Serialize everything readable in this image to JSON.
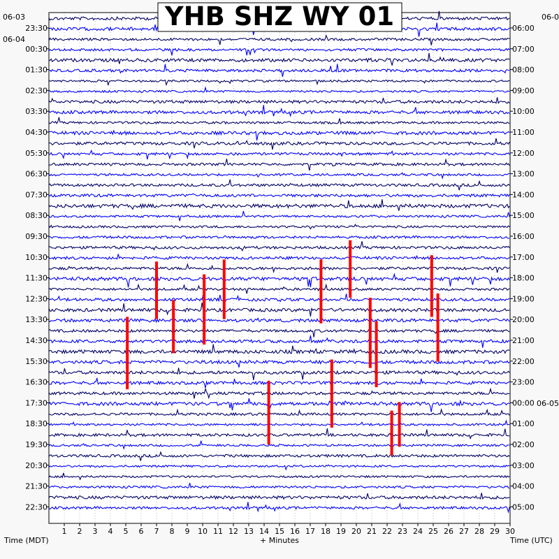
{
  "chart_data": {
    "type": "helicorder",
    "title": "YHB SHZ WY 01",
    "xlabel": "+ Minutes",
    "left_axis_title": "Time (MDT)",
    "right_axis_title": "Time (UTC)",
    "xlim": [
      0,
      30
    ],
    "x_ticks": [
      "1",
      "2",
      "3",
      "4",
      "5",
      "6",
      "7",
      "8",
      "9",
      "10",
      "11",
      "12",
      "13",
      "14",
      "15",
      "16",
      "17",
      "18",
      "19",
      "20",
      "21",
      "22",
      "23",
      "24",
      "25",
      "26",
      "27",
      "28",
      "29",
      "30"
    ],
    "left_date_labels": [
      "06-03",
      "06-04"
    ],
    "right_date_labels": [
      "06-0",
      "06-05"
    ],
    "left_times": [
      "23:30",
      "00:30",
      "01:30",
      "02:30",
      "03:30",
      "04:30",
      "05:30",
      "06:30",
      "07:30",
      "08:30",
      "09:30",
      "10:30",
      "11:30",
      "12:30",
      "13:30",
      "14:30",
      "15:30",
      "16:30",
      "17:30",
      "18:30",
      "19:30",
      "20:30",
      "21:30",
      "22:30"
    ],
    "right_times": [
      "06:00",
      "07:00",
      "08:00",
      "09:00",
      "10:00",
      "11:00",
      "12:00",
      "13:00",
      "14:00",
      "15:00",
      "16:00",
      "17:00",
      "18:00",
      "19:00",
      "20:00",
      "21:00",
      "22:00",
      "23:00",
      "00:00",
      "01:00",
      "02:00",
      "03:00",
      "04:00",
      "05:00"
    ],
    "trace_count": 48,
    "colors": [
      "#000066",
      "#0000ff"
    ],
    "clip_color": "#ff0000",
    "clipped_events": [
      {
        "minute": 7.0,
        "hour": "12:30",
        "minute_span": [
          11.7,
          14.4
        ]
      },
      {
        "minute": 8.1,
        "hour": "13:30",
        "minute_span": [
          13.5,
          16.0
        ]
      },
      {
        "minute": 5.1,
        "hour": "14:30",
        "minute_span": [
          14.3,
          17.7
        ]
      },
      {
        "minute": 10.1,
        "hour": "12:30",
        "minute_span": [
          12.3,
          15.6
        ]
      },
      {
        "minute": 11.4,
        "hour": "12:30",
        "minute_span": [
          11.6,
          14.4
        ]
      },
      {
        "minute": 17.7,
        "hour": "12:30",
        "minute_span": [
          11.6,
          14.6
        ]
      },
      {
        "minute": 19.6,
        "hour": "11:30",
        "minute_span": [
          10.7,
          13.4
        ]
      },
      {
        "minute": 20.9,
        "hour": "13:30",
        "minute_span": [
          13.4,
          16.7
        ]
      },
      {
        "minute": 21.3,
        "hour": "14:30",
        "minute_span": [
          14.5,
          17.6
        ]
      },
      {
        "minute": 24.9,
        "hour": "12:30",
        "minute_span": [
          11.4,
          14.3
        ]
      },
      {
        "minute": 25.3,
        "hour": "13:30",
        "minute_span": [
          13.2,
          16.4
        ]
      },
      {
        "minute": 14.3,
        "hour": "17:30",
        "minute_span": [
          17.3,
          20.3
        ]
      },
      {
        "minute": 18.4,
        "hour": "16:30",
        "minute_span": [
          16.3,
          19.5
        ]
      },
      {
        "minute": 22.3,
        "hour": "18:30",
        "minute_span": [
          18.7,
          20.8
        ]
      },
      {
        "minute": 22.8,
        "hour": "18:30",
        "minute_span": [
          18.3,
          20.4
        ]
      }
    ]
  }
}
